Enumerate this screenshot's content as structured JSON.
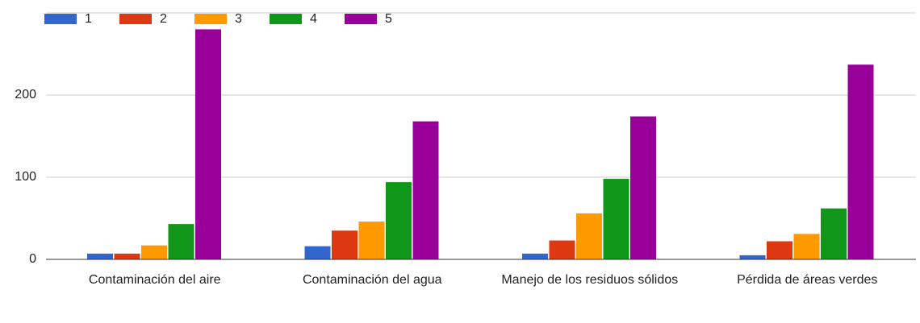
{
  "chart_data": {
    "type": "bar",
    "categories": [
      "Contaminación del aire",
      "Contaminación del agua",
      "Manejo de los residuos sólidos",
      "Pérdida de áreas verdes"
    ],
    "series": [
      {
        "name": "1",
        "color": "#3366cc",
        "values": [
          7,
          16,
          7,
          5
        ]
      },
      {
        "name": "2",
        "color": "#dc3912",
        "values": [
          7,
          35,
          23,
          22
        ]
      },
      {
        "name": "3",
        "color": "#ff9900",
        "values": [
          17,
          46,
          56,
          31
        ]
      },
      {
        "name": "4",
        "color": "#109618",
        "values": [
          43,
          94,
          98,
          62
        ]
      },
      {
        "name": "5",
        "color": "#990099",
        "values": [
          280,
          168,
          174,
          237
        ]
      }
    ],
    "ylim": [
      0,
      300
    ],
    "yticks": [
      0,
      100,
      200
    ],
    "grid": true,
    "legend": "top"
  }
}
